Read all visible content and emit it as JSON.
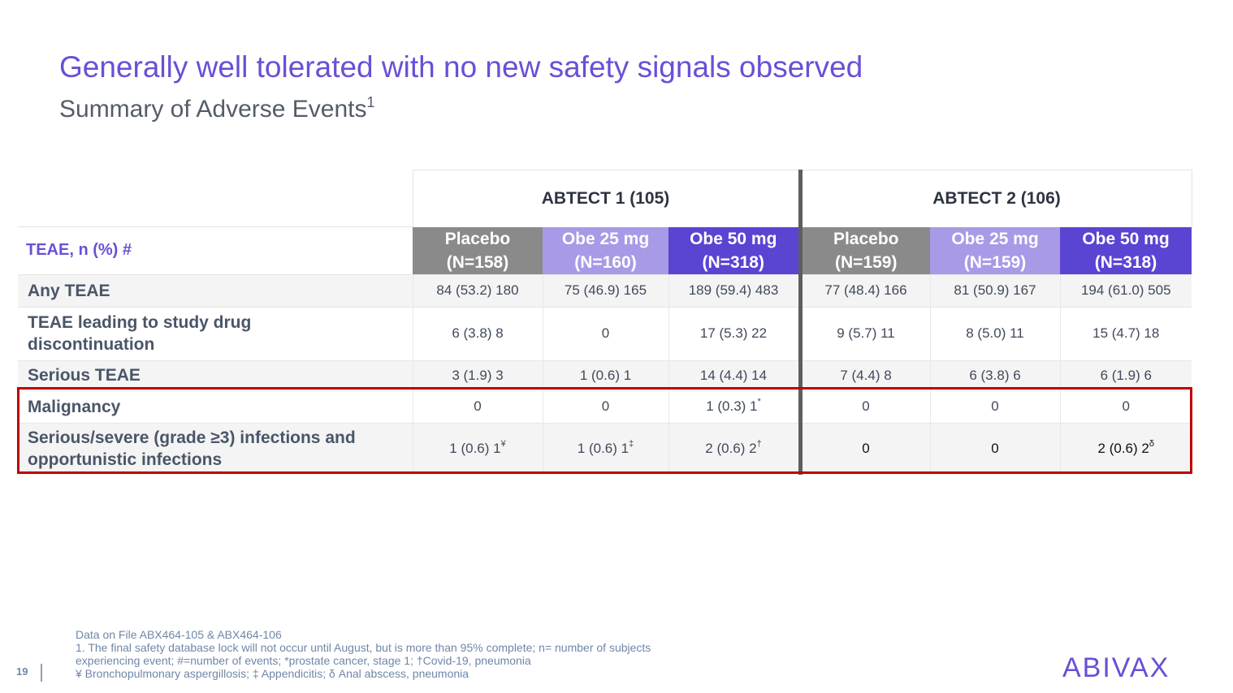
{
  "header": {
    "title": "Generally well tolerated with no new safety signals observed",
    "subtitle": "Summary of Adverse Events",
    "subtitle_sup": "1"
  },
  "table": {
    "studies": [
      "ABTECT 1 (105)",
      "ABTECT 2 (106)"
    ],
    "row_header": "TEAE, n (%) #",
    "arms": [
      {
        "name": "Placebo",
        "n": "(N=158)",
        "type": "placebo"
      },
      {
        "name": "Obe 25 mg",
        "n": "(N=160)",
        "type": "obe25"
      },
      {
        "name": "Obe 50 mg",
        "n": "(N=318)",
        "type": "obe50"
      },
      {
        "name": "Placebo",
        "n": "(N=159)",
        "type": "placebo"
      },
      {
        "name": "Obe 25 mg",
        "n": "(N=159)",
        "type": "obe25"
      },
      {
        "name": "Obe 50 mg",
        "n": "(N=318)",
        "type": "obe50"
      }
    ],
    "rows": [
      {
        "label": "Any TEAE",
        "values": [
          "84 (53.2) 180",
          "75 (46.9) 165",
          "189 (59.4) 483",
          "77 (48.4) 166",
          "81 (50.9) 167",
          "194 (61.0) 505"
        ]
      },
      {
        "label": "TEAE leading to study drug discontinuation",
        "values": [
          "6 (3.8) 8",
          "0",
          "17 (5.3) 22",
          "9 (5.7) 11",
          "8 (5.0) 11",
          "15 (4.7) 18"
        ]
      },
      {
        "label": "Serious TEAE",
        "values": [
          "3 (1.9) 3",
          "1 (0.6) 1",
          "14 (4.4) 14",
          "7 (4.4) 8",
          "6 (3.8) 6",
          "6 (1.9) 6"
        ]
      },
      {
        "label": "Malignancy",
        "values": [
          "0",
          "0",
          "1 (0.3) 1",
          "0",
          "0",
          "0"
        ],
        "sups": [
          "",
          "",
          "*",
          "",
          "",
          ""
        ]
      },
      {
        "label": "Serious/severe (grade ≥3) infections and opportunistic infections",
        "values": [
          "1 (0.6) 1",
          "1 (0.6) 1",
          "2 (0.6) 2",
          "0",
          "0",
          "2 (0.6) 2"
        ],
        "sups": [
          "¥",
          "‡",
          "†",
          "",
          "",
          "δ"
        ]
      }
    ]
  },
  "footnotes": [
    "Data on File ABX464-105 & ABX464-106",
    "1. The final safety database lock will not occur until August, but is more than 95% complete; n= number of subjects",
    "experiencing event; #=number of events; *prostate cancer, stage 1; †Covid-19, pneumonia",
    "¥ Bronchopulmonary aspergillosis; ‡ Appendicitis; δ Anal abscess, pneumonia"
  ],
  "page_number": "19",
  "logo_text": "ABIVAX",
  "colors": {
    "title": "#6a4fd6",
    "placebo": "#8a8a8a",
    "obe25": "#a89ae6",
    "obe50": "#5a44d2",
    "highlight_box": "#c00000"
  }
}
